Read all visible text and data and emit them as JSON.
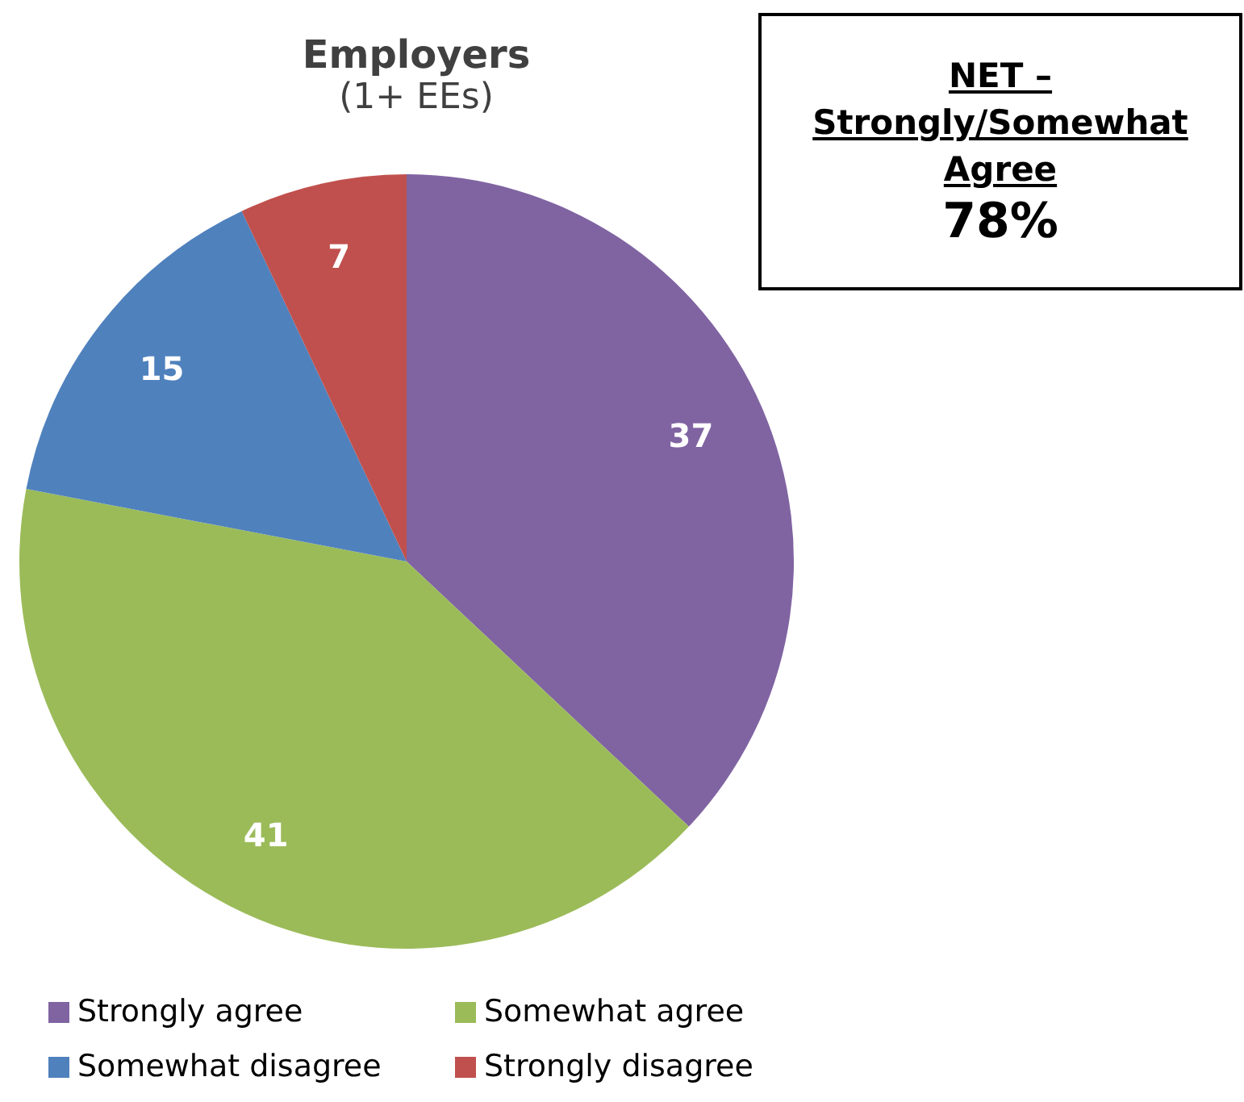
{
  "chart_data": {
    "type": "pie",
    "title": "Employers",
    "subtitle": "(1+ EEs)",
    "categories": [
      "Strongly agree",
      "Somewhat agree",
      "Somewhat disagree",
      "Strongly disagree"
    ],
    "values": [
      37,
      41,
      15,
      7
    ],
    "colors": [
      "#8064a2",
      "#9bbb59",
      "#4f81bd",
      "#c0504d"
    ],
    "data_labels": true,
    "legend": "bottom",
    "annotations": [
      "NET – Strongly/Somewhat Agree",
      "78%"
    ]
  }
}
